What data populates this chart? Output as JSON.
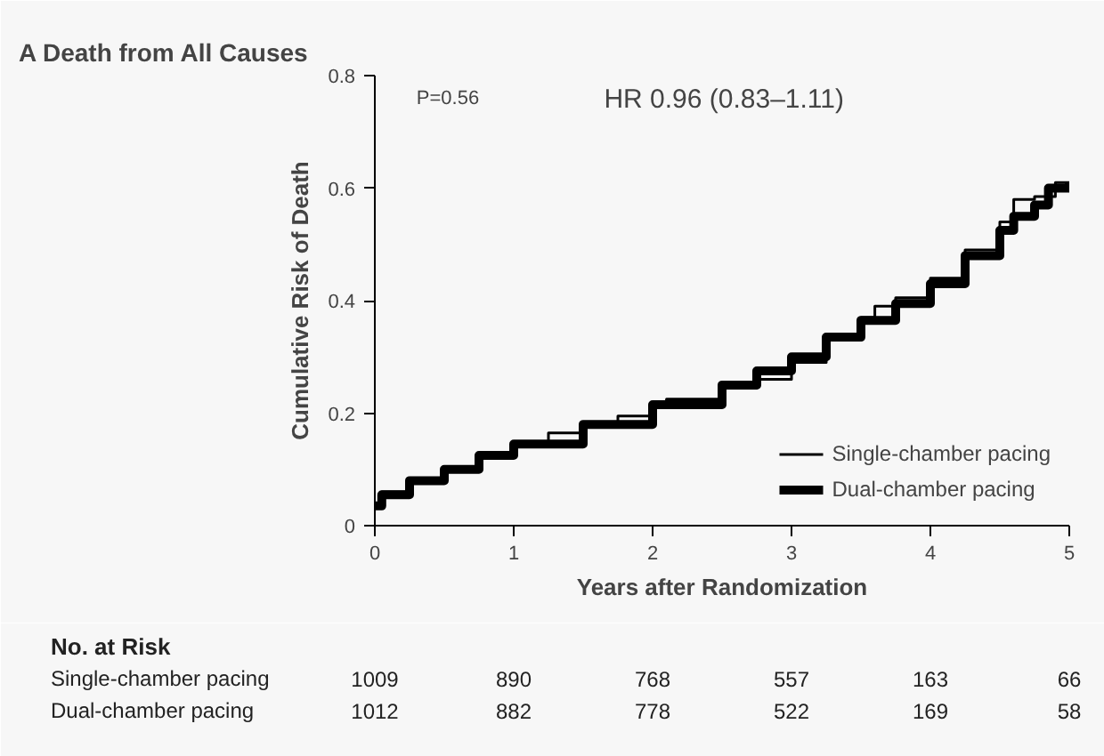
{
  "chart_data": {
    "type": "step",
    "title": "A  Death from All Causes",
    "xlabel": "Years after Randomization",
    "ylabel": "Cumulative Risk of Death",
    "xlim": [
      0,
      5
    ],
    "xticks": [
      0,
      1,
      2,
      3,
      4,
      5
    ],
    "ylim": [
      0,
      0.8
    ],
    "yticks": [
      {
        "value": 0,
        "label": "0"
      },
      0.2,
      0.4,
      0.6,
      0.8
    ],
    "grid": false,
    "legend": "bottom right",
    "series": [
      {
        "name": "Single-chamber pacing",
        "color": "#000000",
        "x": [
          0,
          0.05,
          0.25,
          0.5,
          0.75,
          1,
          1.25,
          1.5,
          1.75,
          2,
          2.1,
          2.5,
          2.75,
          3,
          3.25,
          3.5,
          3.6,
          3.75,
          4,
          4.25,
          4.5,
          4.6,
          4.75,
          4.9,
          5
        ],
        "values": [
          0.04,
          0.06,
          0.08,
          0.1,
          0.125,
          0.145,
          0.165,
          0.18,
          0.195,
          0.21,
          0.225,
          0.245,
          0.26,
          0.29,
          0.33,
          0.37,
          0.39,
          0.405,
          0.44,
          0.49,
          0.54,
          0.58,
          0.585,
          0.61,
          0.61
        ]
      },
      {
        "name": "Dual-chamber pacing",
        "color": "#000000",
        "x": [
          0,
          0.05,
          0.25,
          0.5,
          0.75,
          1,
          1.5,
          2,
          2.5,
          2.75,
          3,
          3.25,
          3.5,
          3.75,
          4,
          4.25,
          4.5,
          4.6,
          4.75,
          4.85,
          5
        ],
        "values": [
          0.035,
          0.055,
          0.08,
          0.1,
          0.125,
          0.145,
          0.18,
          0.215,
          0.25,
          0.275,
          0.3,
          0.335,
          0.365,
          0.395,
          0.43,
          0.48,
          0.525,
          0.55,
          0.57,
          0.6,
          0.61
        ]
      }
    ],
    "annotations": [
      "P=0.56",
      "HR 0.96 (0.83–1.11)",
      "No. at Risk",
      "Single-chamber pacing",
      "1009",
      "890",
      "768",
      "557",
      "163",
      "66",
      "Dual-chamber pacing",
      "1012",
      "882",
      "778",
      "522",
      "169",
      "58"
    ]
  }
}
